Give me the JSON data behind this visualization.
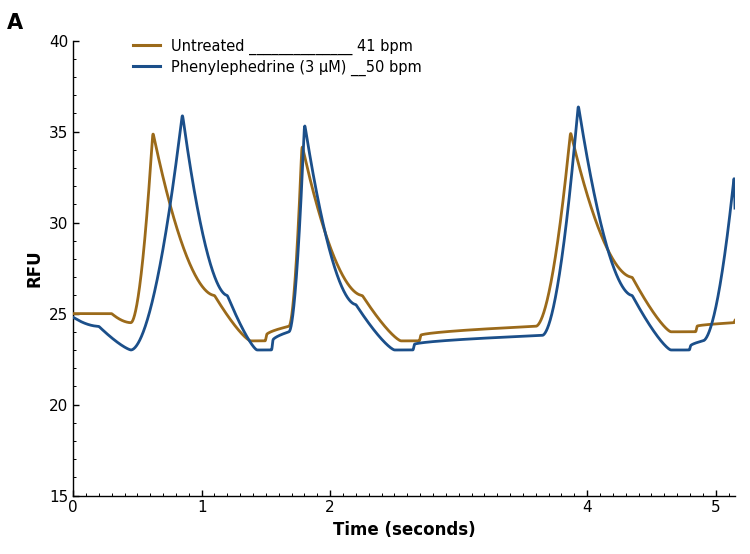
{
  "title": "",
  "xlabel": "Time (seconds)",
  "ylabel": "RFU",
  "panel_label": "A",
  "xlim": [
    0,
    5.15
  ],
  "ylim": [
    15,
    40
  ],
  "yticks": [
    15,
    20,
    25,
    30,
    35,
    40
  ],
  "xticks": [
    0,
    1,
    2,
    4,
    5
  ],
  "untreated_color": "#9B6A1A",
  "phenyl_color": "#1B4F8A",
  "untreated_label": "Untreated",
  "untreated_bpm": "41 bpm",
  "phenyl_label": "Phenylephedrine (3 μM)",
  "phenyl_bpm": "50 bpm",
  "line_width": 2.0,
  "background_color": "#ffffff"
}
